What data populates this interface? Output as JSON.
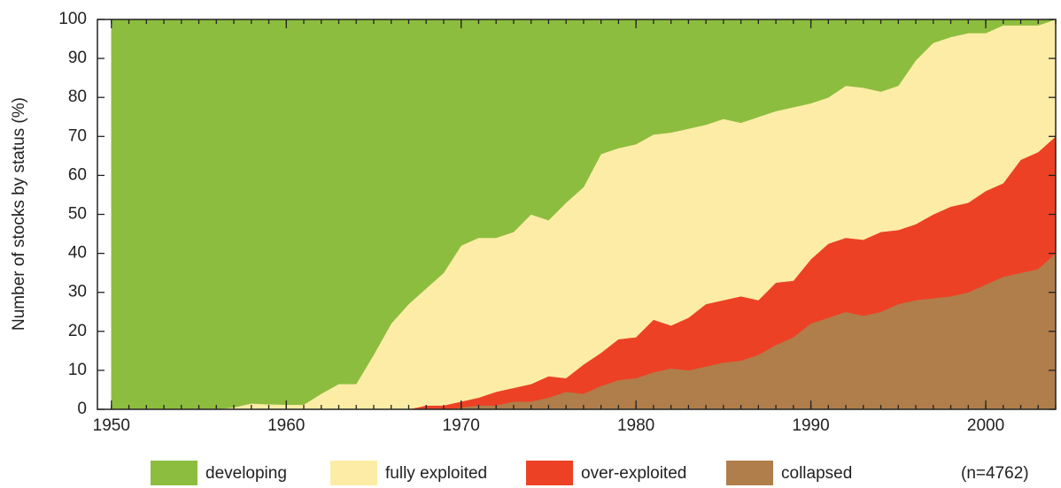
{
  "chart_data": {
    "type": "stacked_area",
    "ylabel": "Number of stocks by status (%)",
    "annotation": "(n=4762)",
    "x": [
      1950,
      1951,
      1952,
      1953,
      1954,
      1955,
      1956,
      1957,
      1958,
      1959,
      1960,
      1961,
      1962,
      1963,
      1964,
      1965,
      1966,
      1967,
      1968,
      1969,
      1970,
      1971,
      1972,
      1973,
      1974,
      1975,
      1976,
      1977,
      1978,
      1979,
      1980,
      1981,
      1982,
      1983,
      1984,
      1985,
      1986,
      1987,
      1988,
      1989,
      1990,
      1991,
      1992,
      1993,
      1994,
      1995,
      1996,
      1997,
      1998,
      1999,
      2000,
      2001,
      2002,
      2003,
      2004
    ],
    "series": [
      {
        "name": "developing",
        "color": "#8dbd3e",
        "values": [
          100,
          100,
          100,
          100,
          100,
          100,
          100,
          99.5,
          98.5,
          98.7,
          98.8,
          98.8,
          96,
          93.5,
          93.5,
          86,
          78,
          73,
          69,
          65,
          58,
          56,
          56,
          54.5,
          50,
          51.5,
          47,
          43,
          34.5,
          33,
          32,
          29.5,
          29,
          28,
          27,
          25.5,
          26.5,
          25,
          23.5,
          22.5,
          21.5,
          20,
          17,
          17.5,
          18.5,
          17,
          10.5,
          6,
          4.5,
          3.5,
          3.5,
          1.5,
          1.5,
          1.5,
          0
        ]
      },
      {
        "name": "fully exploited",
        "color": "#fdeca6",
        "values": [
          0,
          0,
          0,
          0,
          0,
          0,
          0,
          0.5,
          1.5,
          1.3,
          1.2,
          1.2,
          4,
          6.5,
          6.5,
          14,
          22,
          27,
          30,
          34,
          40,
          41,
          39.5,
          40,
          43.5,
          40,
          45,
          45.5,
          51,
          49,
          49.5,
          47.5,
          49.5,
          48.5,
          46,
          46.5,
          44.5,
          47,
          44,
          44.5,
          40,
          37.5,
          39,
          39,
          36,
          37,
          42,
          44,
          43.5,
          43.5,
          40.5,
          40.5,
          34.5,
          32.5,
          30
        ]
      },
      {
        "name": "over-exploited",
        "color": "#ec4125",
        "values": [
          0,
          0,
          0,
          0,
          0,
          0,
          0,
          0,
          0,
          0,
          0,
          0,
          0,
          0,
          0,
          0,
          0,
          0,
          1,
          1,
          1.5,
          2,
          3.5,
          3.5,
          4.5,
          5.5,
          3.5,
          7.5,
          8.5,
          10.5,
          10.5,
          13.5,
          11,
          13.5,
          16,
          16,
          16.5,
          14,
          16,
          14.5,
          16.5,
          19,
          19,
          19.5,
          20.5,
          19,
          19.5,
          21.5,
          23,
          23,
          24,
          24,
          29,
          30,
          30
        ]
      },
      {
        "name": "collapsed",
        "color": "#b07e4a",
        "values": [
          0,
          0,
          0,
          0,
          0,
          0,
          0,
          0,
          0,
          0,
          0,
          0,
          0,
          0,
          0,
          0,
          0,
          0,
          0,
          0,
          0.5,
          1,
          1,
          2,
          2,
          3,
          4.5,
          4,
          6,
          7.5,
          8,
          9.5,
          10.5,
          10,
          11,
          12,
          12.5,
          14,
          16.5,
          18.5,
          22,
          23.5,
          25,
          24,
          25,
          27,
          28,
          28.5,
          29,
          30,
          32,
          34,
          35,
          36,
          40
        ]
      }
    ],
    "xlim": [
      1949.2,
      2004
    ],
    "ylim": [
      0,
      100
    ],
    "xticks": [
      1950,
      1960,
      1970,
      1980,
      1990,
      2000
    ],
    "yticks": [
      0,
      10,
      20,
      30,
      40,
      50,
      60,
      70,
      80,
      90,
      100
    ]
  }
}
